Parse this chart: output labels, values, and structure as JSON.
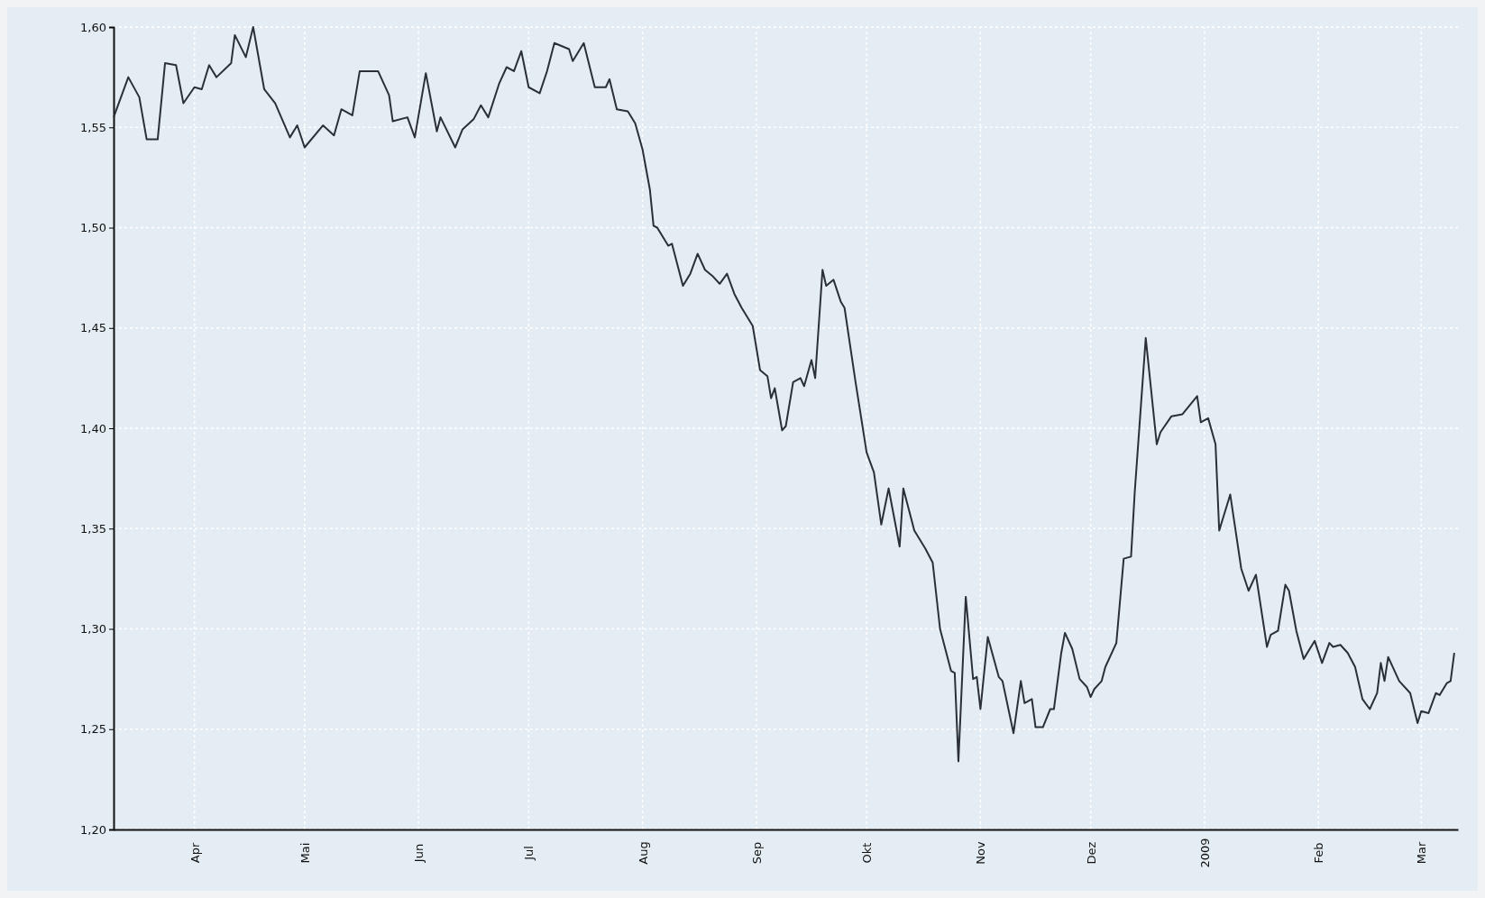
{
  "chart_data": {
    "type": "line",
    "xlim": [
      "2008-03-10",
      "2009-03-11"
    ],
    "ylim": [
      1.2,
      1.6
    ],
    "yticks": [
      {
        "value": 1.2,
        "label": "1,20"
      },
      {
        "value": 1.25,
        "label": "1,25"
      },
      {
        "value": 1.3,
        "label": "1,30"
      },
      {
        "value": 1.35,
        "label": "1,35"
      },
      {
        "value": 1.4,
        "label": "1,40"
      },
      {
        "value": 1.45,
        "label": "1,45"
      },
      {
        "value": 1.5,
        "label": "1,50"
      },
      {
        "value": 1.55,
        "label": "1,55"
      },
      {
        "value": 1.6,
        "label": "1,60"
      }
    ],
    "xticks": [
      {
        "value": "2008-04-01",
        "label": "Apr"
      },
      {
        "value": "2008-05-01",
        "label": "Mai"
      },
      {
        "value": "2008-06-01",
        "label": "Jun"
      },
      {
        "value": "2008-07-01",
        "label": "Jul"
      },
      {
        "value": "2008-08-01",
        "label": "Aug"
      },
      {
        "value": "2008-09-01",
        "label": "Sep"
      },
      {
        "value": "2008-10-01",
        "label": "Okt"
      },
      {
        "value": "2008-11-01",
        "label": "Nov"
      },
      {
        "value": "2008-12-01",
        "label": "Dez"
      },
      {
        "value": "2009-01-01",
        "label": "2009"
      },
      {
        "value": "2009-02-01",
        "label": "Feb"
      },
      {
        "value": "2009-03-01",
        "label": "Mar"
      }
    ],
    "grid": true,
    "marker": "none",
    "line_style": "solid",
    "series": [
      {
        "color": "#2b3038",
        "x": [
          "2008-03-10",
          "2008-03-14",
          "2008-03-17",
          "2008-03-19",
          "2008-03-22",
          "2008-03-24",
          "2008-03-27",
          "2008-03-29",
          "2008-04-01",
          "2008-04-03",
          "2008-04-05",
          "2008-04-07",
          "2008-04-11",
          "2008-04-12",
          "2008-04-15",
          "2008-04-17",
          "2008-04-20",
          "2008-04-23",
          "2008-04-27",
          "2008-04-29",
          "2008-05-01",
          "2008-05-06",
          "2008-05-09",
          "2008-05-11",
          "2008-05-14",
          "2008-05-16",
          "2008-05-21",
          "2008-05-24",
          "2008-05-25",
          "2008-05-29",
          "2008-05-31",
          "2008-06-03",
          "2008-06-06",
          "2008-06-07",
          "2008-06-11",
          "2008-06-13",
          "2008-06-16",
          "2008-06-18",
          "2008-06-20",
          "2008-06-23",
          "2008-06-25",
          "2008-06-27",
          "2008-06-29",
          "2008-07-01",
          "2008-07-04",
          "2008-07-06",
          "2008-07-08",
          "2008-07-12",
          "2008-07-13",
          "2008-07-16",
          "2008-07-19",
          "2008-07-22",
          "2008-07-23",
          "2008-07-25",
          "2008-07-28",
          "2008-07-30",
          "2008-08-01",
          "2008-08-03",
          "2008-08-04",
          "2008-08-05",
          "2008-08-08",
          "2008-08-09",
          "2008-08-12",
          "2008-08-14",
          "2008-08-16",
          "2008-08-18",
          "2008-08-20",
          "2008-08-22",
          "2008-08-24",
          "2008-08-26",
          "2008-08-28",
          "2008-08-31",
          "2008-09-02",
          "2008-09-04",
          "2008-09-05",
          "2008-09-06",
          "2008-09-08",
          "2008-09-09",
          "2008-09-11",
          "2008-09-13",
          "2008-09-14",
          "2008-09-16",
          "2008-09-17",
          "2008-09-19",
          "2008-09-20",
          "2008-09-22",
          "2008-09-24",
          "2008-09-25",
          "2008-09-28",
          "2008-10-01",
          "2008-10-03",
          "2008-10-05",
          "2008-10-07",
          "2008-10-10",
          "2008-10-11",
          "2008-10-14",
          "2008-10-17",
          "2008-10-19",
          "2008-10-21",
          "2008-10-24",
          "2008-10-25",
          "2008-10-26",
          "2008-10-28",
          "2008-10-30",
          "2008-10-31",
          "2008-11-01",
          "2008-11-03",
          "2008-11-06",
          "2008-11-07",
          "2008-11-10",
          "2008-11-12",
          "2008-11-13",
          "2008-11-15",
          "2008-11-16",
          "2008-11-18",
          "2008-11-20",
          "2008-11-21",
          "2008-11-23",
          "2008-11-24",
          "2008-11-26",
          "2008-11-28",
          "2008-11-30",
          "2008-12-01",
          "2008-12-02",
          "2008-12-04",
          "2008-12-05",
          "2008-12-08",
          "2008-12-10",
          "2008-12-12",
          "2008-12-13",
          "2008-12-16",
          "2008-12-19",
          "2008-12-20",
          "2008-12-23",
          "2008-12-26",
          "2008-12-30",
          "2008-12-31",
          "2009-01-02",
          "2009-01-04",
          "2009-01-05",
          "2009-01-08",
          "2009-01-11",
          "2009-01-13",
          "2009-01-15",
          "2009-01-18",
          "2009-01-19",
          "2009-01-21",
          "2009-01-23",
          "2009-01-24",
          "2009-01-26",
          "2009-01-28",
          "2009-01-31",
          "2009-02-02",
          "2009-02-04",
          "2009-02-05",
          "2009-02-07",
          "2009-02-09",
          "2009-02-11",
          "2009-02-13",
          "2009-02-15",
          "2009-02-17",
          "2009-02-18",
          "2009-02-19",
          "2009-02-20",
          "2009-02-23",
          "2009-02-26",
          "2009-02-28",
          "2009-03-01",
          "2009-03-03",
          "2009-03-05",
          "2009-03-06",
          "2009-03-08",
          "2009-03-09",
          "2009-03-10"
        ],
        "values": [
          1.555,
          1.575,
          1.565,
          1.544,
          1.544,
          1.582,
          1.581,
          1.562,
          1.57,
          1.569,
          1.581,
          1.575,
          1.582,
          1.596,
          1.585,
          1.6,
          1.569,
          1.562,
          1.545,
          1.551,
          1.54,
          1.551,
          1.546,
          1.559,
          1.556,
          1.578,
          1.578,
          1.566,
          1.553,
          1.555,
          1.545,
          1.577,
          1.548,
          1.555,
          1.54,
          1.549,
          1.554,
          1.561,
          1.555,
          1.572,
          1.58,
          1.578,
          1.588,
          1.57,
          1.567,
          1.578,
          1.592,
          1.589,
          1.583,
          1.592,
          1.57,
          1.57,
          1.574,
          1.559,
          1.558,
          1.552,
          1.539,
          1.519,
          1.501,
          1.5,
          1.491,
          1.492,
          1.471,
          1.477,
          1.487,
          1.479,
          1.476,
          1.472,
          1.477,
          1.467,
          1.46,
          1.451,
          1.429,
          1.426,
          1.415,
          1.42,
          1.399,
          1.401,
          1.423,
          1.425,
          1.421,
          1.434,
          1.425,
          1.479,
          1.471,
          1.474,
          1.463,
          1.46,
          1.423,
          1.388,
          1.378,
          1.352,
          1.37,
          1.341,
          1.37,
          1.349,
          1.34,
          1.333,
          1.3,
          1.279,
          1.278,
          1.234,
          1.316,
          1.275,
          1.276,
          1.26,
          1.296,
          1.276,
          1.274,
          1.248,
          1.274,
          1.263,
          1.265,
          1.251,
          1.251,
          1.26,
          1.26,
          1.288,
          1.298,
          1.29,
          1.275,
          1.271,
          1.266,
          1.27,
          1.274,
          1.281,
          1.293,
          1.335,
          1.336,
          1.368,
          1.445,
          1.392,
          1.398,
          1.406,
          1.407,
          1.416,
          1.403,
          1.405,
          1.392,
          1.349,
          1.367,
          1.33,
          1.319,
          1.327,
          1.291,
          1.297,
          1.299,
          1.322,
          1.319,
          1.299,
          1.285,
          1.294,
          1.283,
          1.293,
          1.291,
          1.292,
          1.288,
          1.281,
          1.265,
          1.26,
          1.268,
          1.283,
          1.274,
          1.286,
          1.274,
          1.268,
          1.253,
          1.259,
          1.258,
          1.268,
          1.267,
          1.273,
          1.274,
          1.288
        ]
      }
    ]
  }
}
